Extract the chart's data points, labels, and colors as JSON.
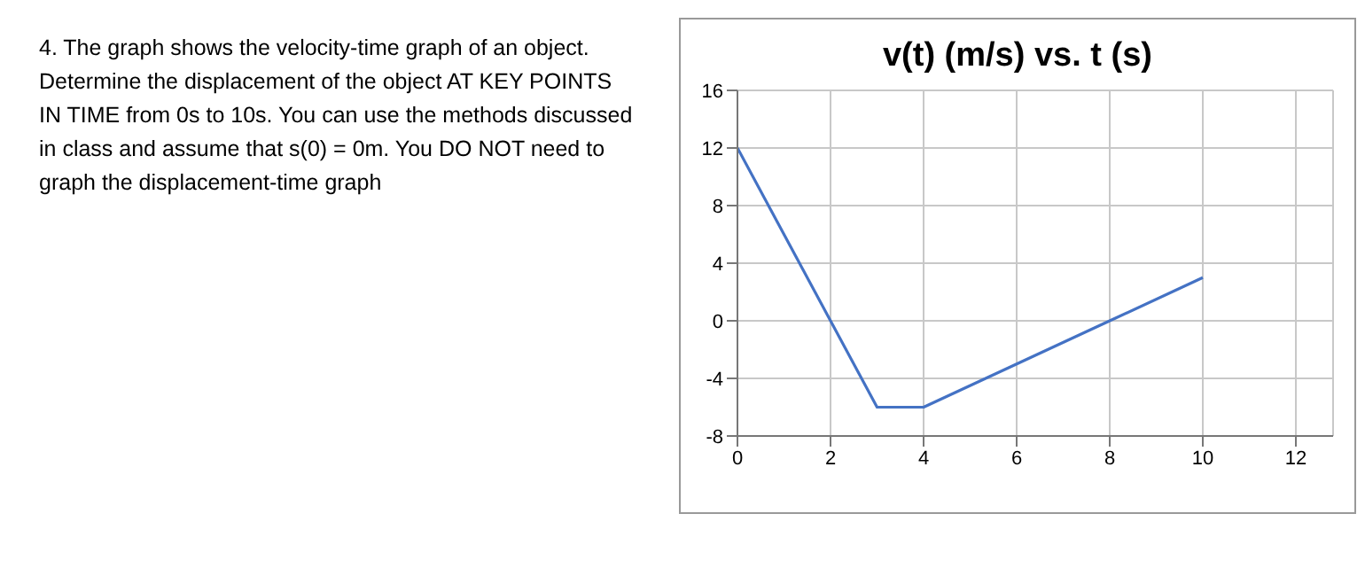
{
  "chart_data": {
    "type": "line",
    "title": "v(t) (m/s) vs. t (s)",
    "annotations": [
      "4. The graph shows the velocity-time graph of an object.  Determine the displacement of the object AT KEY POINTS IN TIME from 0s to 10s.  You can use the methods discussed in class and assume that s(0) = 0m.  You DO NOT need to graph the displacement-time graph"
    ],
    "series": [
      {
        "color": "#4472c4",
        "x": [
          0,
          2,
          3,
          4,
          8,
          10
        ],
        "values": [
          12,
          0,
          -6,
          -6,
          0,
          3
        ]
      }
    ],
    "xlim": [
      0,
      12.8
    ],
    "xticks": [
      0,
      2,
      4,
      6,
      8,
      10,
      12
    ],
    "ylim": [
      -8,
      16
    ],
    "yticks": [
      -8,
      -4,
      0,
      4,
      8,
      12,
      16
    ],
    "grid": true,
    "marker": "none",
    "line_style": "solid"
  }
}
